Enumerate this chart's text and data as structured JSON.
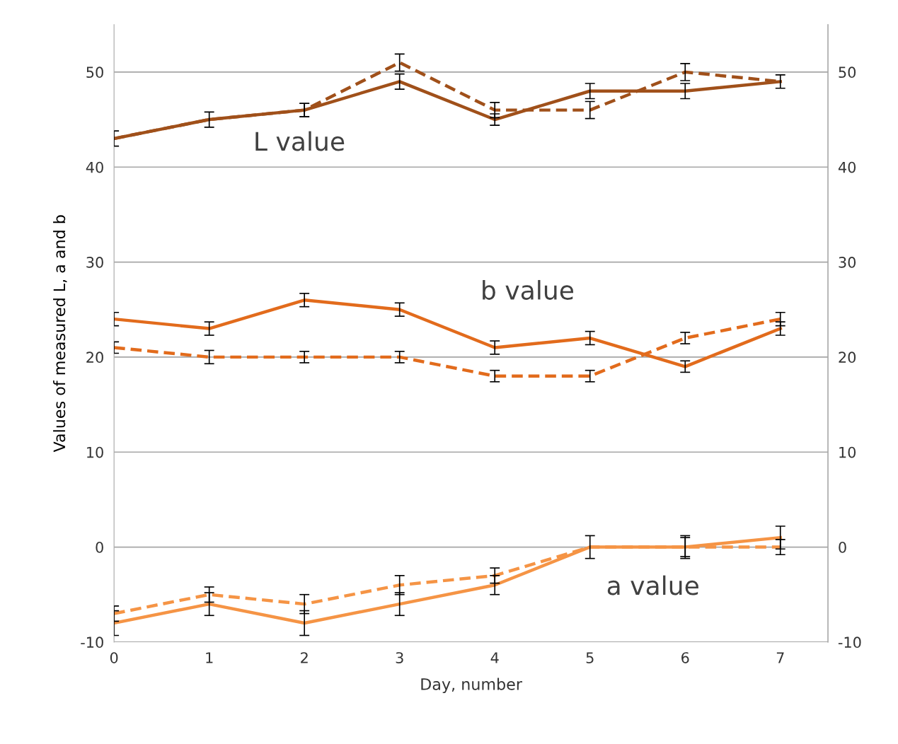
{
  "chart_data": {
    "type": "line",
    "xlabel": "Day, number",
    "ylabel": "Values of measured L, a and b",
    "x": [
      0,
      1,
      2,
      3,
      4,
      5,
      6,
      7
    ],
    "xlim": [
      0,
      7.5
    ],
    "xticks": [
      0,
      1,
      2,
      3,
      4,
      5,
      6,
      7
    ],
    "ylim": [
      -10,
      55
    ],
    "yticks": [
      -10,
      0,
      10,
      20,
      30,
      40,
      50
    ],
    "y2lim": [
      -10,
      55
    ],
    "y2ticks": [
      -10,
      0,
      10,
      20,
      30,
      40,
      50
    ],
    "grid": "y",
    "marker": "none",
    "series": [
      {
        "color": "#a0501a",
        "line_style": "solid",
        "values": [
          43,
          45,
          46,
          49,
          45,
          48,
          48,
          49
        ],
        "errors": [
          0.8,
          0.8,
          0.7,
          0.8,
          0.6,
          0.8,
          0.8,
          0.7
        ]
      },
      {
        "color": "#a0501a",
        "line_style": "dashed",
        "values": [
          43,
          45,
          46,
          51,
          46,
          46,
          50,
          49
        ],
        "errors": [
          null,
          null,
          0.7,
          0.9,
          0.8,
          0.9,
          0.9,
          null
        ]
      },
      {
        "color": "#e26b1c",
        "line_style": "solid",
        "values": [
          24,
          23,
          26,
          25,
          21,
          22,
          19,
          23
        ],
        "errors": [
          0.7,
          0.7,
          0.7,
          0.7,
          0.7,
          0.7,
          0.6,
          0.7
        ]
      },
      {
        "color": "#e26b1c",
        "line_style": "dashed",
        "values": [
          21,
          20,
          20,
          20,
          18,
          18,
          22,
          24
        ],
        "errors": [
          0.6,
          0.7,
          0.6,
          0.6,
          0.6,
          0.6,
          0.6,
          0.7
        ]
      },
      {
        "color": "#f59445",
        "line_style": "solid",
        "values": [
          -8,
          -6,
          -8,
          -6,
          -4,
          0,
          0,
          1
        ],
        "errors": [
          1.3,
          1.2,
          1.3,
          1.2,
          1.0,
          1.2,
          1.2,
          1.2
        ]
      },
      {
        "color": "#f59445",
        "line_style": "dashed",
        "values": [
          -7,
          -5,
          -6,
          -4,
          -3,
          0,
          0,
          0
        ],
        "errors": [
          0.8,
          0.8,
          1.0,
          1.0,
          0.8,
          null,
          1.0,
          0.8
        ]
      }
    ],
    "annotations": [
      "L value",
      "b value",
      "a value"
    ]
  }
}
